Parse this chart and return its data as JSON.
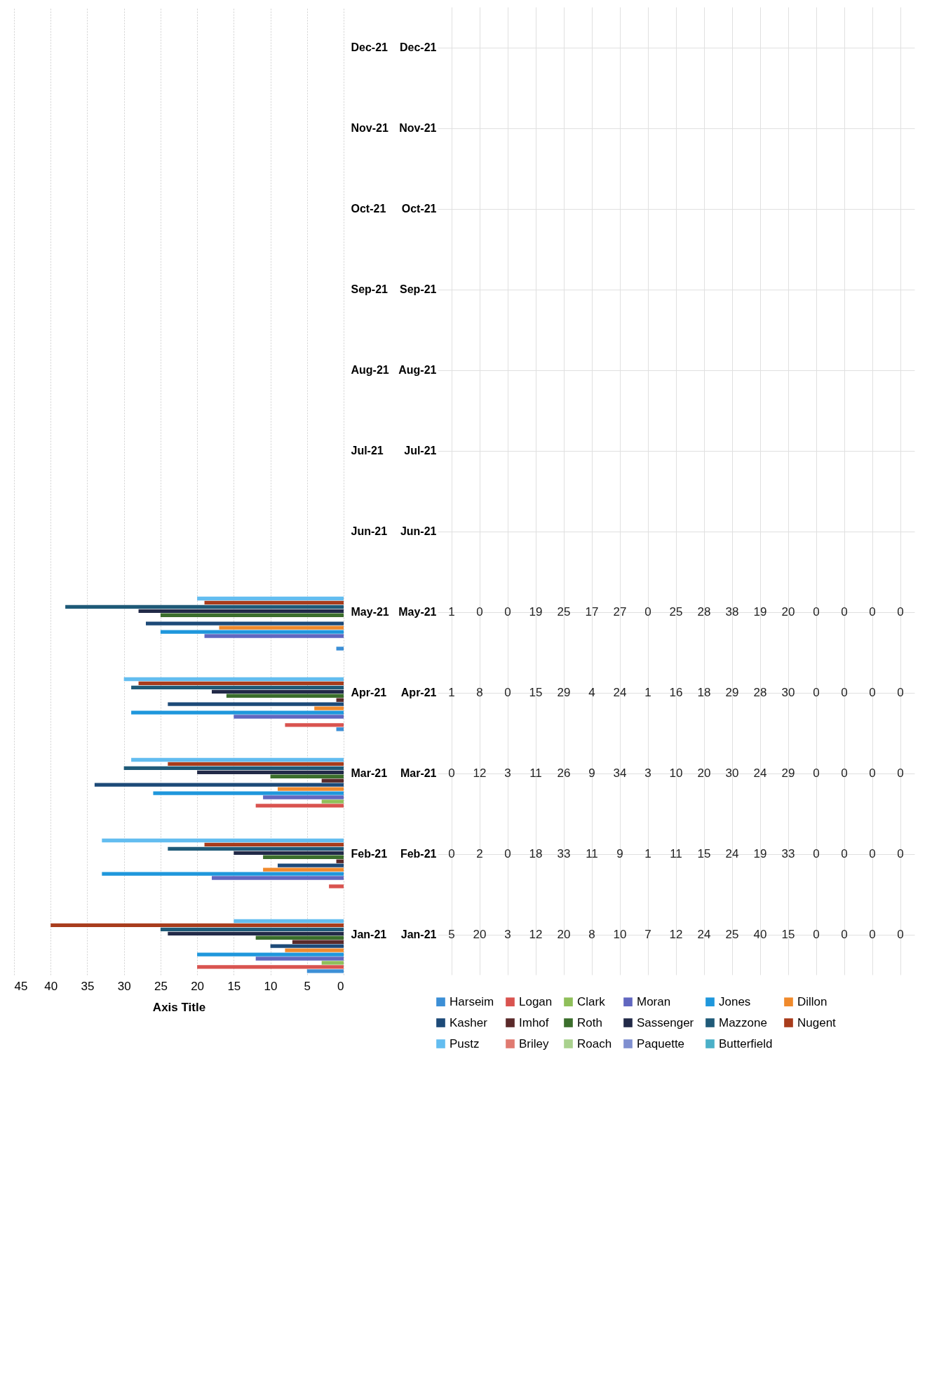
{
  "chart_data": {
    "type": "bar",
    "orientation": "horizontal",
    "xlabel": "Axis Title",
    "categories": [
      "Dec-21",
      "Nov-21",
      "Oct-21",
      "Sep-21",
      "Aug-21",
      "Jul-21",
      "Jun-21",
      "May-21",
      "Apr-21",
      "Mar-21",
      "Feb-21",
      "Jan-21"
    ],
    "series": [
      {
        "name": "Harseim",
        "color": "#3c8fd6",
        "values": [
          null,
          null,
          null,
          null,
          null,
          null,
          null,
          1,
          1,
          0,
          0,
          5
        ]
      },
      {
        "name": "Logan",
        "color": "#d9534f",
        "values": [
          null,
          null,
          null,
          null,
          null,
          null,
          null,
          0,
          8,
          12,
          2,
          20
        ]
      },
      {
        "name": "Clark",
        "color": "#8fbf5a",
        "values": [
          null,
          null,
          null,
          null,
          null,
          null,
          null,
          0,
          0,
          3,
          0,
          3
        ]
      },
      {
        "name": "Moran",
        "color": "#6167c0",
        "values": [
          null,
          null,
          null,
          null,
          null,
          null,
          null,
          19,
          15,
          11,
          18,
          12
        ]
      },
      {
        "name": "Jones",
        "color": "#1f97dc",
        "values": [
          null,
          null,
          null,
          null,
          null,
          null,
          null,
          25,
          29,
          26,
          33,
          20
        ]
      },
      {
        "name": "Dillon",
        "color": "#f08a2c",
        "values": [
          null,
          null,
          null,
          null,
          null,
          null,
          null,
          17,
          4,
          9,
          11,
          8
        ]
      },
      {
        "name": "Kasher",
        "color": "#1d4a78",
        "values": [
          null,
          null,
          null,
          null,
          null,
          null,
          null,
          27,
          24,
          34,
          9,
          10
        ]
      },
      {
        "name": "Imhof",
        "color": "#5a2a2a",
        "values": [
          null,
          null,
          null,
          null,
          null,
          null,
          null,
          0,
          1,
          3,
          1,
          7
        ]
      },
      {
        "name": "Roth",
        "color": "#3b6e2c",
        "values": [
          null,
          null,
          null,
          null,
          null,
          null,
          null,
          25,
          16,
          10,
          11,
          12
        ]
      },
      {
        "name": "Sassenger",
        "color": "#222a48",
        "values": [
          null,
          null,
          null,
          null,
          null,
          null,
          null,
          28,
          18,
          20,
          15,
          24
        ]
      },
      {
        "name": "Mazzone",
        "color": "#1f5a78",
        "values": [
          null,
          null,
          null,
          null,
          null,
          null,
          null,
          38,
          29,
          30,
          24,
          25
        ]
      },
      {
        "name": "Nugent",
        "color": "#a83c1c",
        "values": [
          null,
          null,
          null,
          null,
          null,
          null,
          null,
          19,
          28,
          24,
          19,
          40
        ]
      },
      {
        "name": "Pustz",
        "color": "#63bdf0",
        "values": [
          null,
          null,
          null,
          null,
          null,
          null,
          null,
          20,
          30,
          29,
          33,
          15
        ]
      },
      {
        "name": "Briley",
        "color": "#e07a70",
        "values": [
          null,
          null,
          null,
          null,
          null,
          null,
          null,
          0,
          0,
          0,
          0,
          0
        ]
      },
      {
        "name": "Roach",
        "color": "#a9d18e",
        "values": [
          null,
          null,
          null,
          null,
          null,
          null,
          null,
          0,
          0,
          0,
          0,
          0
        ]
      },
      {
        "name": "Paquette",
        "color": "#7f8fd0",
        "values": [
          null,
          null,
          null,
          null,
          null,
          null,
          null,
          0,
          0,
          0,
          0,
          0
        ]
      },
      {
        "name": "Butterfield",
        "color": "#4bb0c8",
        "values": [
          null,
          null,
          null,
          null,
          null,
          null,
          null,
          0,
          0,
          0,
          0,
          0
        ]
      }
    ],
    "xlim": [
      45,
      0
    ],
    "xticks": [
      0,
      5,
      10,
      15,
      20,
      25,
      30,
      35,
      40,
      45
    ],
    "grid": true,
    "legend": "bottom",
    "data_labels": true
  }
}
